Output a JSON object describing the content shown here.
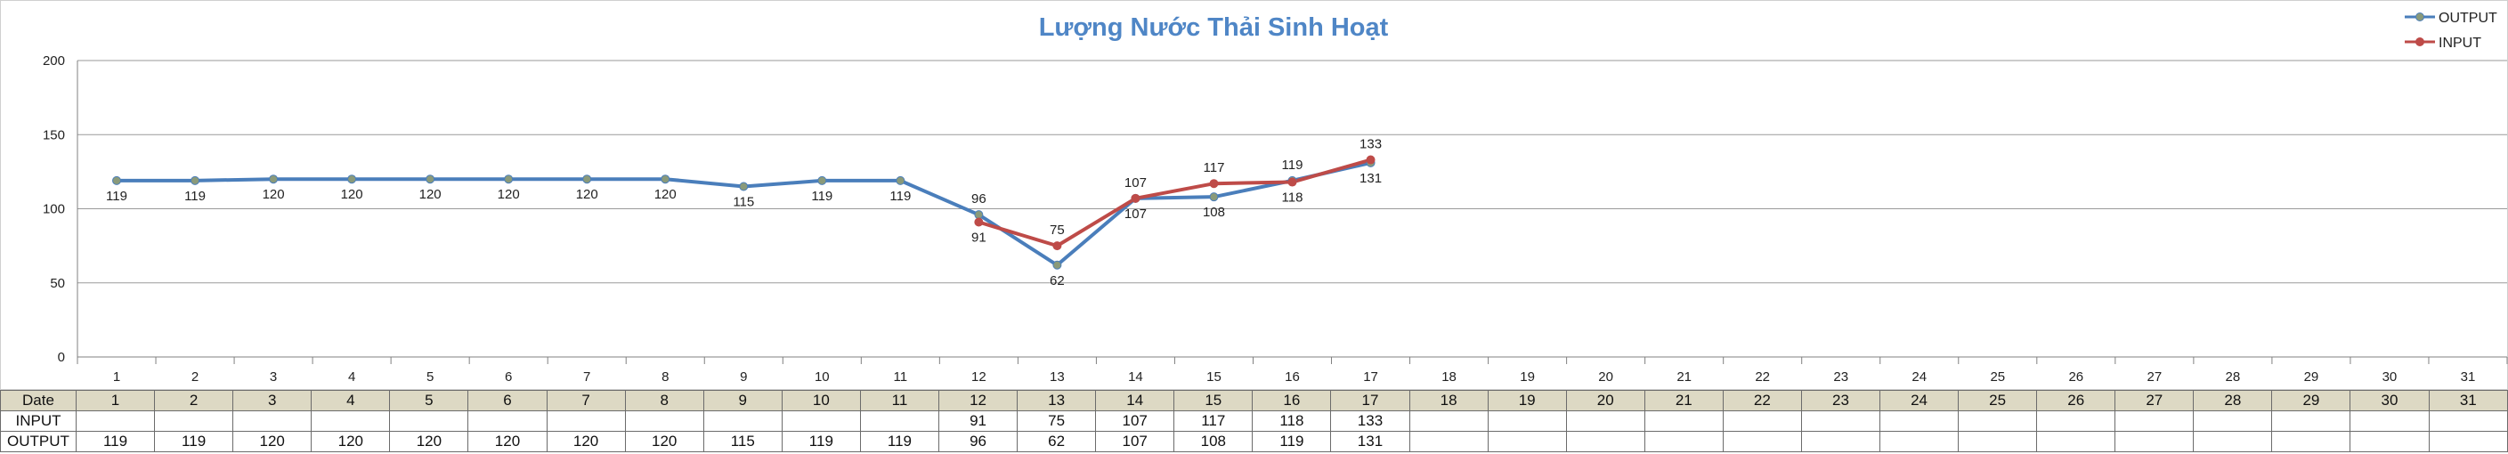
{
  "chart_data": {
    "type": "line",
    "title": "Lượng Nước Thải Sinh Hoạt",
    "categories": [
      "1",
      "2",
      "3",
      "4",
      "5",
      "6",
      "7",
      "8",
      "9",
      "10",
      "11",
      "12",
      "13",
      "14",
      "15",
      "16",
      "17",
      "18",
      "19",
      "20",
      "21",
      "22",
      "23",
      "24",
      "25",
      "26",
      "27",
      "28",
      "29",
      "30",
      "31"
    ],
    "ylim": [
      0,
      200
    ],
    "yticks": [
      0,
      50,
      100,
      150,
      200
    ],
    "grid": true,
    "legend_position": "top-right",
    "series": [
      {
        "name": "OUTPUT",
        "color": "#4a7ebb",
        "marker_color": "#8a9a7a",
        "values": [
          119,
          119,
          120,
          120,
          120,
          120,
          120,
          120,
          115,
          119,
          119,
          96,
          62,
          107,
          108,
          119,
          131,
          null,
          null,
          null,
          null,
          null,
          null,
          null,
          null,
          null,
          null,
          null,
          null,
          null,
          null
        ]
      },
      {
        "name": "INPUT",
        "color": "#be4b48",
        "marker_color": "#be4b48",
        "values": [
          null,
          null,
          null,
          null,
          null,
          null,
          null,
          null,
          null,
          null,
          null,
          91,
          75,
          107,
          117,
          118,
          133,
          null,
          null,
          null,
          null,
          null,
          null,
          null,
          null,
          null,
          null,
          null,
          null,
          null,
          null
        ]
      }
    ]
  },
  "table": {
    "header_label": "Date",
    "rows": [
      {
        "label": "INPUT",
        "series_index": 1
      },
      {
        "label": "OUTPUT",
        "series_index": 0
      }
    ]
  }
}
